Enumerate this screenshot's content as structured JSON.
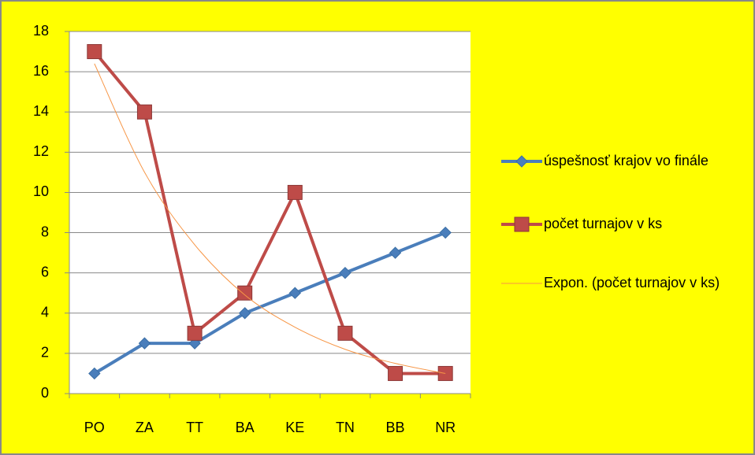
{
  "chart_data": {
    "type": "line",
    "categories": [
      "PO",
      "ZA",
      "TT",
      "BA",
      "KE",
      "TN",
      "BB",
      "NR"
    ],
    "series": [
      {
        "name": "úspešnosť krajov vo finále",
        "color": "#4a7ebb",
        "marker": "diamond",
        "values": [
          1,
          2.5,
          2.5,
          4,
          5,
          6,
          7,
          8
        ]
      },
      {
        "name": "počet turnajov v ks",
        "color": "#be4b48",
        "marker": "square",
        "values": [
          17,
          14,
          3,
          5,
          10,
          3,
          1,
          1
        ]
      },
      {
        "name": "Expon. (počet turnajov v ks)",
        "color": "#f79646",
        "marker": "none",
        "values": [
          16.4,
          11,
          7.4,
          4.9,
          3.3,
          2.2,
          1.5,
          1
        ]
      }
    ],
    "ylim": [
      0,
      18
    ],
    "yticks": [
      0,
      2,
      4,
      6,
      8,
      10,
      12,
      14,
      16,
      18
    ],
    "grid": true,
    "legend": "right",
    "background": "#ffff00"
  }
}
